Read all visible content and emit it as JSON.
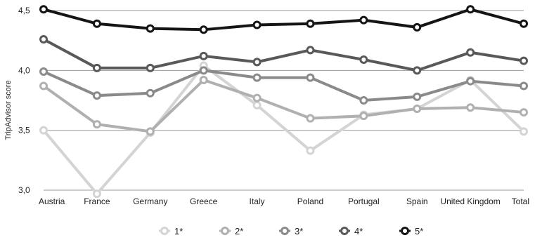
{
  "chart_data": {
    "type": "line",
    "title": "",
    "xlabel": "",
    "ylabel": "TripAdvisor score",
    "ylim": [
      3.0,
      4.5
    ],
    "yticks": [
      "3,0",
      "3,5",
      "4,0",
      "4,5"
    ],
    "ytick_values": [
      3.0,
      3.5,
      4.0,
      4.5
    ],
    "grid": true,
    "legend_position": "bottom",
    "categories": [
      "Austria",
      "France",
      "Germany",
      "Greece",
      "Italy",
      "Poland",
      "Portugal",
      "Spain",
      "United Kingdom",
      "Total"
    ],
    "series": [
      {
        "name": "1*",
        "color": "#d4d4d4",
        "values": [
          3.5,
          2.97,
          3.48,
          4.04,
          3.71,
          3.33,
          3.63,
          3.68,
          3.92,
          3.49
        ]
      },
      {
        "name": "2*",
        "color": "#b0b0b0",
        "values": [
          3.87,
          3.55,
          3.49,
          3.92,
          3.77,
          3.6,
          3.62,
          3.68,
          3.69,
          3.65
        ]
      },
      {
        "name": "3*",
        "color": "#8a8a8a",
        "values": [
          3.99,
          3.79,
          3.81,
          4.0,
          3.94,
          3.94,
          3.75,
          3.78,
          3.91,
          3.87
        ]
      },
      {
        "name": "4*",
        "color": "#595959",
        "values": [
          4.26,
          4.02,
          4.02,
          4.12,
          4.07,
          4.17,
          4.09,
          4.0,
          4.15,
          4.08
        ]
      },
      {
        "name": "5*",
        "color": "#151515",
        "values": [
          4.51,
          4.39,
          4.35,
          4.34,
          4.38,
          4.39,
          4.42,
          4.36,
          4.51,
          4.39
        ]
      }
    ]
  }
}
